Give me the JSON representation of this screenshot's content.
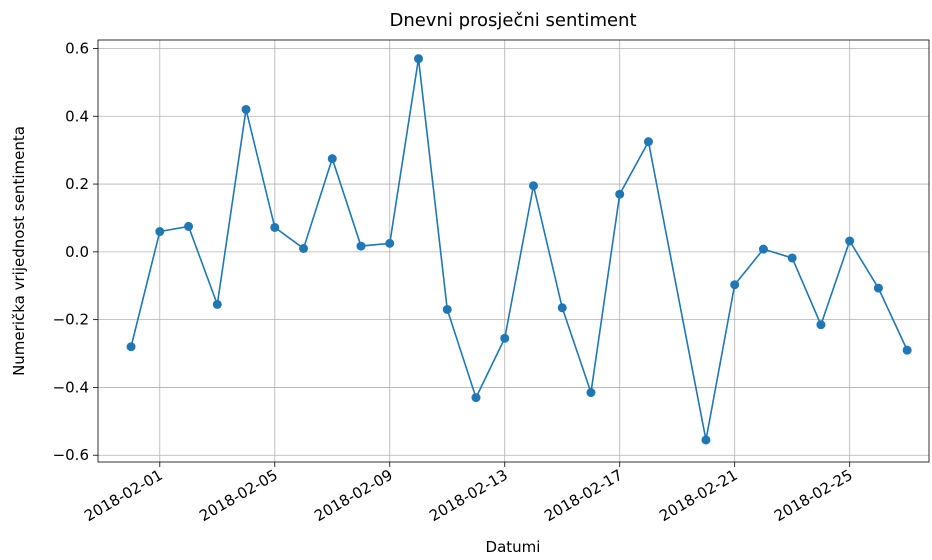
{
  "chart_data": {
    "type": "line",
    "title": "Dnevni prosječni sentiment",
    "x_label": "Datumi",
    "y_label": "Numerička vrijednost sentimenta",
    "x": [
      "2018-01-31",
      "2018-02-01",
      "2018-02-02",
      "2018-02-03",
      "2018-02-04",
      "2018-02-05",
      "2018-02-06",
      "2018-02-07",
      "2018-02-08",
      "2018-02-09",
      "2018-02-10",
      "2018-02-11",
      "2018-02-12",
      "2018-02-13",
      "2018-02-14",
      "2018-02-15",
      "2018-02-16",
      "2018-02-17",
      "2018-02-18",
      "2018-02-20",
      "2018-02-21",
      "2018-02-22",
      "2018-02-23",
      "2018-02-24",
      "2018-02-25",
      "2018-02-26",
      "2018-02-27"
    ],
    "series": [
      {
        "color": "#1f77b4",
        "values": [
          -0.28,
          0.06,
          0.075,
          -0.155,
          0.42,
          0.072,
          0.01,
          0.275,
          0.017,
          0.025,
          0.57,
          -0.17,
          -0.43,
          -0.255,
          0.195,
          -0.165,
          -0.415,
          0.17,
          0.325,
          -0.555,
          -0.097,
          0.008,
          -0.018,
          -0.215,
          0.032,
          -0.107,
          -0.29
        ]
      }
    ],
    "xlim": [
      "2018-01-29T20:24:00Z",
      "2018-02-27T18:14:00Z"
    ],
    "xticks": [
      "2018-02-01",
      "2018-02-05",
      "2018-02-09",
      "2018-02-13",
      "2018-02-17",
      "2018-02-21",
      "2018-02-25"
    ],
    "ylim": [
      -0.62,
      0.625
    ],
    "yticks": [
      {
        "value": -0.6,
        "label": "−0.6"
      },
      {
        "value": -0.4,
        "label": "−0.4"
      },
      {
        "value": -0.2,
        "label": "−0.2"
      },
      {
        "value": 0,
        "label": "0.0"
      },
      0.2,
      0.4,
      0.6
    ],
    "grid": true
  }
}
